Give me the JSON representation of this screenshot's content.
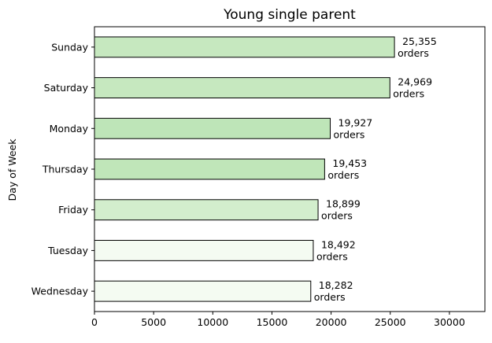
{
  "chart_data": {
    "type": "bar",
    "orientation": "horizontal",
    "title": "Young single parent",
    "xlabel": "",
    "ylabel": "Day of Week",
    "categories": [
      "Wednesday",
      "Tuesday",
      "Friday",
      "Thursday",
      "Monday",
      "Saturday",
      "Sunday"
    ],
    "values": [
      18282,
      18492,
      18899,
      19453,
      19927,
      24969,
      25355
    ],
    "data_labels": [
      [
        "18,282",
        "orders"
      ],
      [
        "18,492",
        "orders"
      ],
      [
        "18,899",
        "orders"
      ],
      [
        "19,453",
        "orders"
      ],
      [
        "19,927",
        "orders"
      ],
      [
        "24,969",
        "orders"
      ],
      [
        "25,355",
        "orders"
      ]
    ],
    "bar_colors": [
      "#f4fbf2",
      "#f4fbf2",
      "#d3eecd",
      "#c0e6b9",
      "#bee5b8",
      "#c6e8bf",
      "#c6e8bf"
    ],
    "xlim": [
      0,
      33000
    ],
    "xticks": [
      0,
      5000,
      10000,
      15000,
      20000,
      25000,
      30000
    ],
    "xtick_labels": [
      "0",
      "5000",
      "10000",
      "15000",
      "20000",
      "25000",
      "30000"
    ],
    "grid": false,
    "legend": "none"
  }
}
